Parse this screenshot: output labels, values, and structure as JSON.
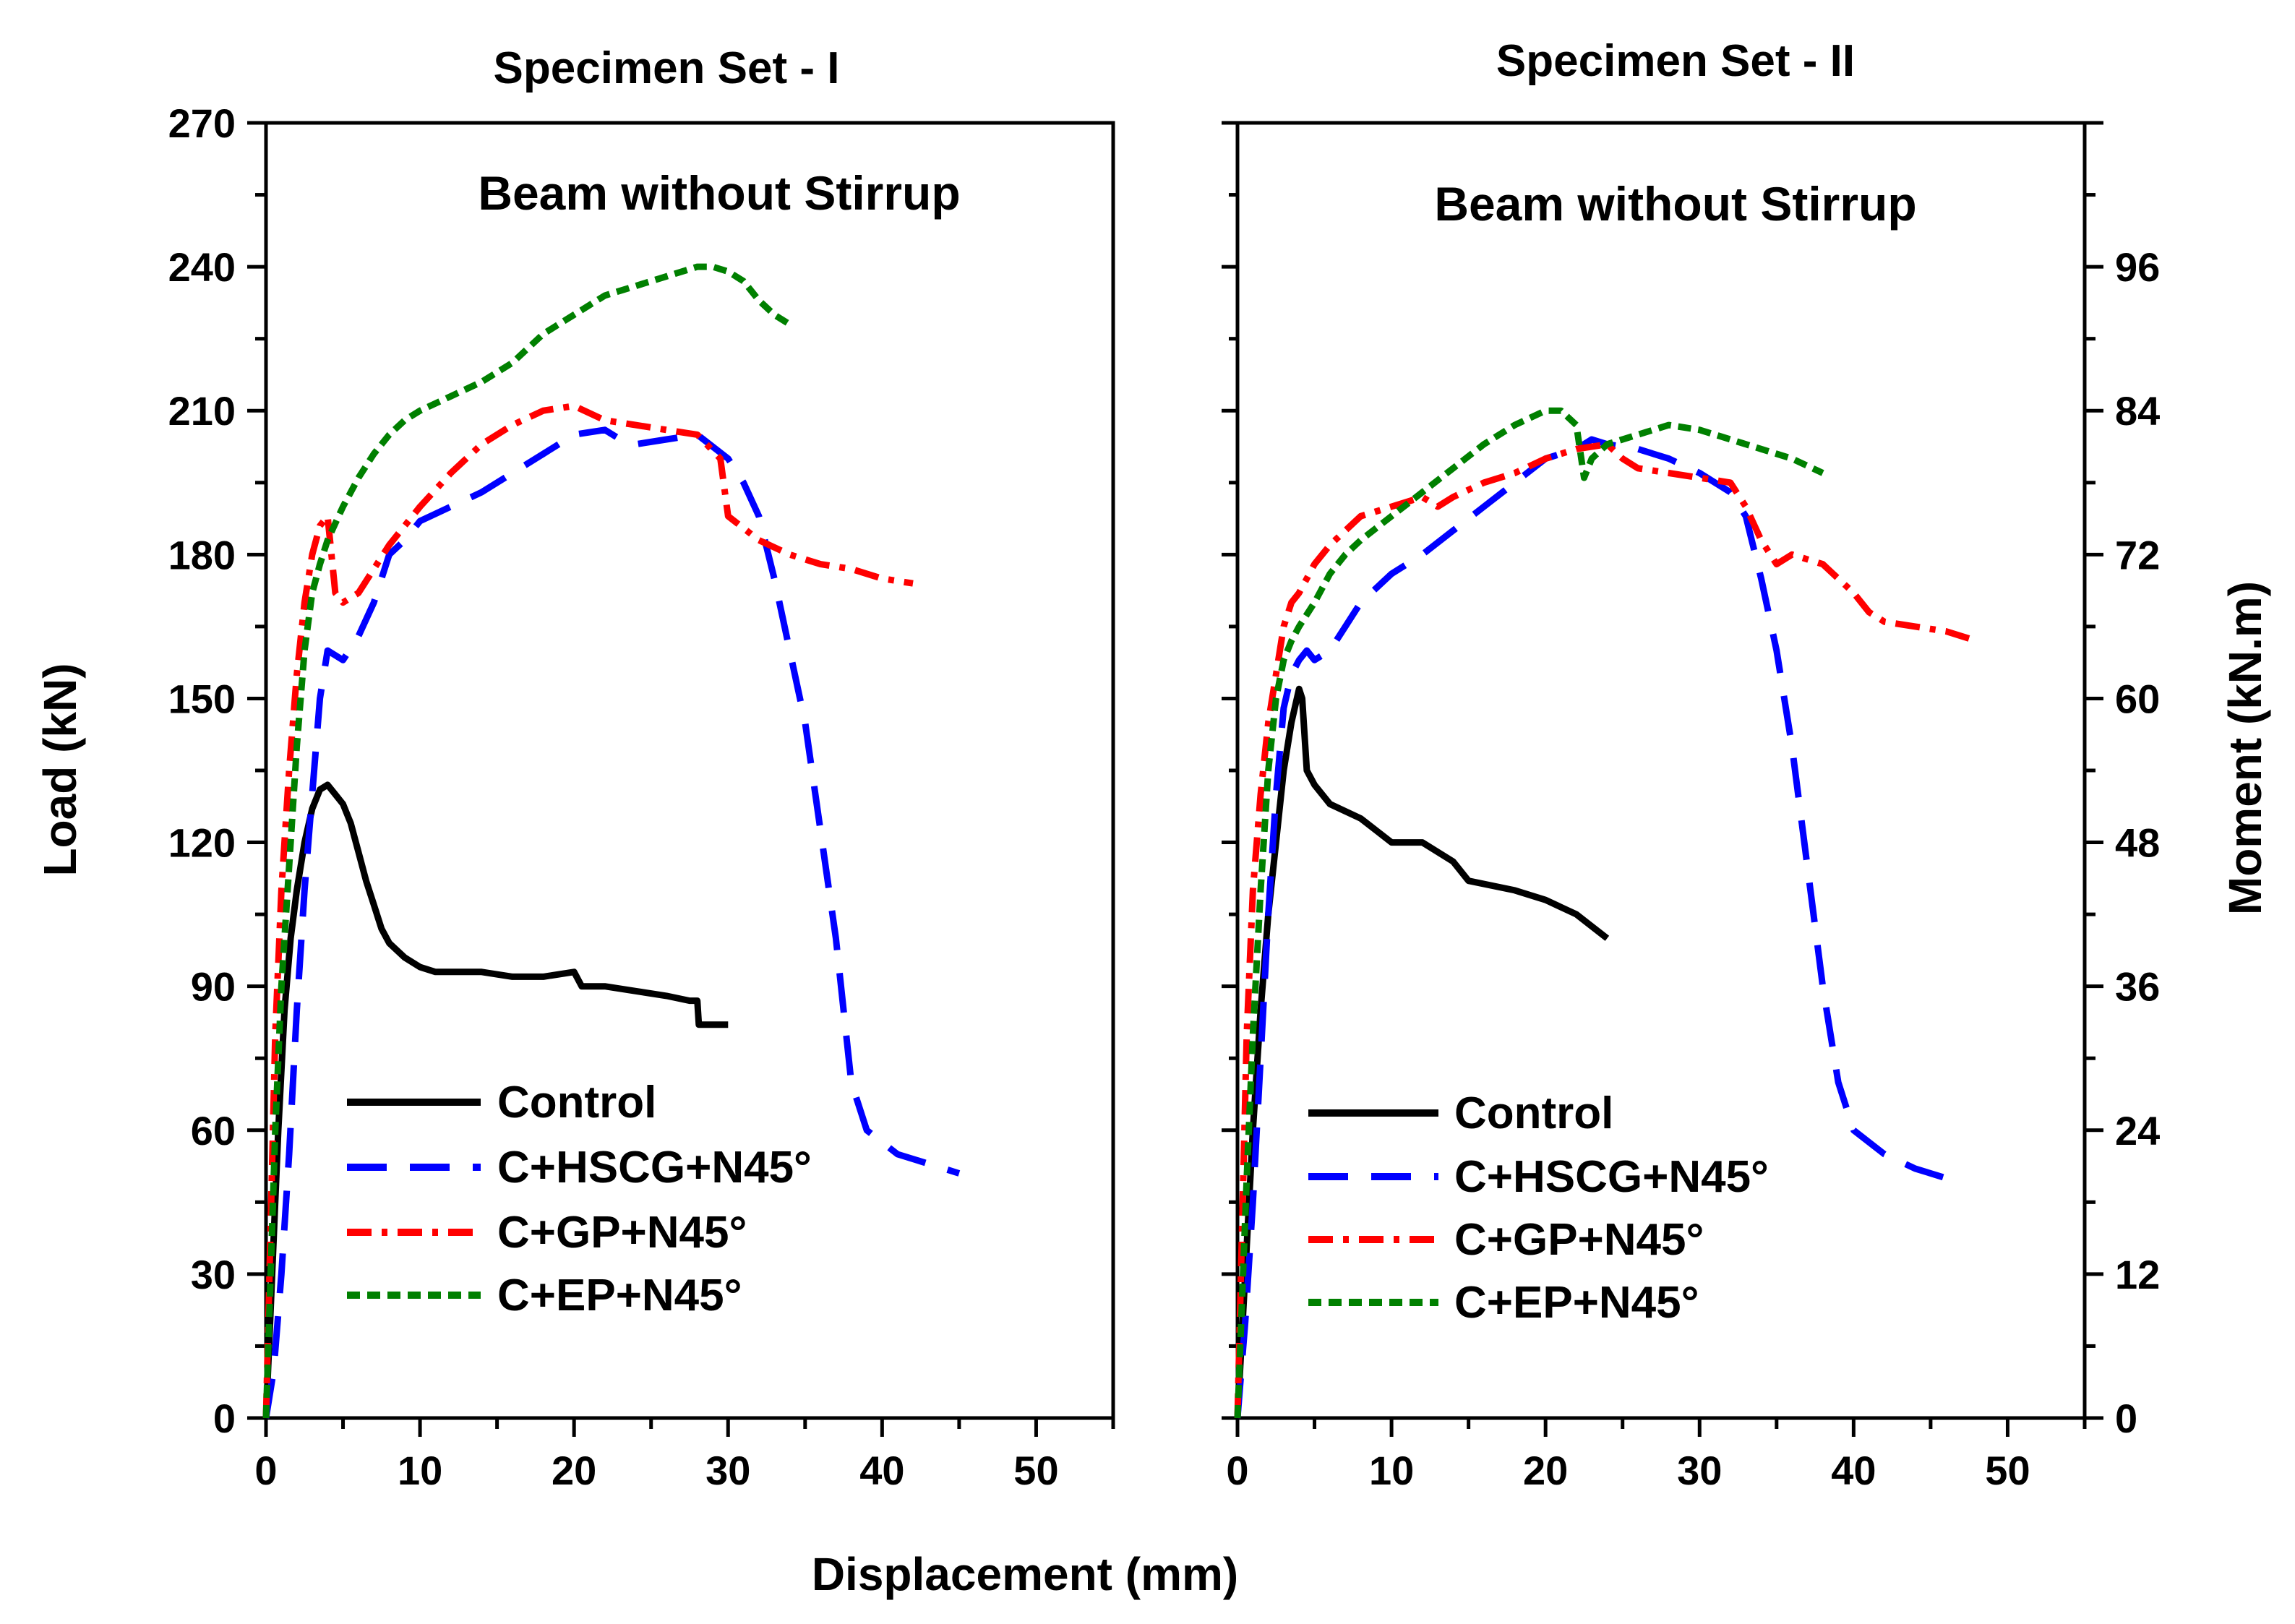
{
  "figure": {
    "shared_xlabel": "Displacement (mm)",
    "left_ylabel": "Load (kN)",
    "right_ylabel": "Moment (kN.m)"
  },
  "chart_data": [
    {
      "type": "line",
      "title": "Specimen Set - I",
      "annotation": "Beam without Stirrup",
      "xlabel": "Displacement (mm)",
      "ylabel": "Load (kN)",
      "xlim": [
        0,
        55
      ],
      "ylim": [
        0,
        270
      ],
      "xticks": [
        0,
        10,
        20,
        30,
        40,
        50
      ],
      "yticks": [
        0,
        30,
        60,
        90,
        120,
        150,
        180,
        210,
        240,
        270
      ],
      "legend_position": "lower-left",
      "series": [
        {
          "name": "Control",
          "color": "#000000",
          "dash": "solid",
          "x": [
            0,
            0.4,
            0.8,
            1.2,
            1.6,
            2.0,
            2.5,
            3.0,
            3.5,
            4.0,
            4.5,
            5.0,
            5.5,
            6.0,
            6.5,
            7.0,
            7.5,
            8.0,
            9.0,
            10.0,
            11.0,
            12.0,
            14.0,
            16.0,
            18.0,
            20.0,
            20.5,
            22.0,
            24.0,
            26.0,
            27.5,
            28.0,
            28.1,
            29.0,
            30.0
          ],
          "y": [
            0,
            30,
            60,
            85,
            100,
            110,
            120,
            127,
            131,
            132,
            130,
            128,
            124,
            118,
            112,
            107,
            102,
            99,
            96,
            94,
            93,
            93,
            93,
            92,
            92,
            93,
            90,
            90,
            89,
            88,
            87,
            87,
            82,
            82,
            82
          ]
        },
        {
          "name": "C+HSCG+N45°",
          "color": "#0000ff",
          "dash": "long-dash",
          "x": [
            0,
            0.5,
            1.0,
            1.5,
            2.0,
            2.5,
            3.0,
            3.5,
            4.0,
            5.0,
            6.0,
            7.0,
            8.0,
            9.0,
            10.0,
            12.0,
            14.0,
            16.0,
            18.0,
            20.0,
            22.0,
            23.0,
            24.0,
            26.0,
            28.0,
            30.0,
            31.0,
            32.0,
            33.0,
            35.0,
            37.0,
            38.0,
            39.0,
            41.0,
            43.0,
            45.0
          ],
          "y": [
            0,
            10,
            30,
            55,
            85,
            110,
            130,
            150,
            160,
            158,
            163,
            170,
            180,
            183,
            187,
            190,
            193,
            197,
            201,
            205,
            206,
            204,
            203,
            204,
            205,
            200,
            195,
            188,
            175,
            145,
            100,
            70,
            60,
            55,
            53,
            51
          ]
        },
        {
          "name": "C+GP+N45°",
          "color": "#ff0000",
          "dash": "dash-dot",
          "x": [
            0,
            0.3,
            0.6,
            1.0,
            1.5,
            2.0,
            2.5,
            3.0,
            3.5,
            4.0,
            4.5,
            5.0,
            6.0,
            7.0,
            8.0,
            10.0,
            12.0,
            14.0,
            16.0,
            18.0,
            20.0,
            22.0,
            24.0,
            26.0,
            28.0,
            29.5,
            30.0,
            32.0,
            34.0,
            36.0,
            38.0,
            40.0,
            42.0
          ],
          "y": [
            0,
            40,
            80,
            110,
            135,
            155,
            170,
            180,
            186,
            188,
            172,
            170,
            172,
            177,
            182,
            190,
            197,
            203,
            207,
            210,
            211,
            208,
            207,
            206,
            205,
            200,
            188,
            183,
            180,
            178,
            177,
            175,
            174
          ]
        },
        {
          "name": "C+EP+N45°",
          "color": "#008000",
          "dash": "short-dash",
          "x": [
            0,
            0.3,
            0.6,
            1.0,
            1.5,
            2.0,
            2.5,
            3.0,
            3.5,
            4.0,
            5.0,
            6.0,
            7.0,
            8.0,
            9.0,
            10.0,
            12.0,
            14.0,
            16.0,
            18.0,
            20.0,
            22.0,
            24.0,
            26.0,
            28.0,
            29.0,
            30.0,
            31.0,
            32.0,
            33.0,
            34.0
          ],
          "y": [
            0,
            30,
            60,
            90,
            115,
            140,
            160,
            172,
            178,
            183,
            190,
            196,
            201,
            205,
            208,
            210,
            213,
            216,
            220,
            226,
            230,
            234,
            236,
            238,
            240,
            240,
            239,
            237,
            233,
            230,
            228
          ]
        }
      ]
    },
    {
      "type": "line",
      "title": "Specimen Set - II",
      "annotation": "Beam without Stirrup",
      "xlabel": "Displacement (mm)",
      "ylabel": "Load (kN)",
      "y2label": "Moment (kN.m)",
      "xlim": [
        0,
        55
      ],
      "ylim": [
        0,
        270
      ],
      "y2lim": [
        0,
        108
      ],
      "xticks": [
        0,
        10,
        20,
        30,
        40,
        50
      ],
      "y2ticks": [
        0,
        12,
        24,
        36,
        48,
        60,
        72,
        84,
        96
      ],
      "legend_position": "lower-left",
      "series": [
        {
          "name": "Control",
          "color": "#000000",
          "dash": "solid",
          "x": [
            0,
            0.5,
            1.0,
            1.5,
            2.0,
            2.5,
            3.0,
            3.5,
            4.0,
            4.2,
            4.5,
            5.0,
            6.0,
            8.0,
            10.0,
            12.0,
            13.0,
            14.0,
            15.0,
            18.0,
            20.0,
            22.0,
            24.0
          ],
          "y": [
            0,
            30,
            60,
            85,
            105,
            120,
            135,
            145,
            152,
            150,
            135,
            132,
            128,
            125,
            120,
            120,
            118,
            116,
            112,
            110,
            108,
            105,
            100
          ]
        },
        {
          "name": "C+HSCG+N45°",
          "color": "#0000ff",
          "dash": "long-dash",
          "x": [
            0,
            0.5,
            1.0,
            1.5,
            2.0,
            2.5,
            3.0,
            3.5,
            4.0,
            4.5,
            5.0,
            6.0,
            7.0,
            8.0,
            10.0,
            12.0,
            14.0,
            16.0,
            18.0,
            20.0,
            22.0,
            23.0,
            24.0,
            26.0,
            28.0,
            30.0,
            32.0,
            33.0,
            34.0,
            35.0,
            36.0,
            37.0,
            38.0,
            39.0,
            40.0,
            42.0,
            44.0,
            46.0
          ],
          "y": [
            0,
            20,
            45,
            75,
            105,
            130,
            148,
            155,
            158,
            160,
            158,
            160,
            165,
            170,
            176,
            180,
            185,
            190,
            195,
            200,
            202,
            204,
            203,
            202,
            200,
            197,
            193,
            188,
            175,
            160,
            140,
            115,
            90,
            70,
            60,
            55,
            52,
            50
          ]
        },
        {
          "name": "C+GP+N45°",
          "color": "#ff0000",
          "dash": "dash-dot",
          "x": [
            0,
            0.3,
            0.6,
            1.0,
            1.5,
            2.0,
            2.5,
            3.0,
            3.5,
            4.0,
            4.5,
            5.0,
            6.0,
            7.0,
            8.0,
            10.0,
            12.0,
            13.0,
            14.0,
            16.0,
            18.0,
            20.0,
            22.0,
            24.0,
            25.0,
            26.0,
            28.0,
            30.0,
            32.0,
            33.0,
            34.0,
            35.0,
            36.0,
            38.0,
            40.0,
            41.0,
            42.0,
            44.0,
            46.0,
            48.0
          ],
          "y": [
            0,
            40,
            80,
            110,
            130,
            145,
            155,
            165,
            170,
            172,
            175,
            178,
            182,
            185,
            188,
            190,
            192,
            190,
            192,
            195,
            197,
            200,
            202,
            203,
            200,
            198,
            197,
            196,
            195,
            190,
            183,
            178,
            180,
            178,
            172,
            168,
            166,
            165,
            164,
            162
          ]
        },
        {
          "name": "C+EP+N45°",
          "color": "#008000",
          "dash": "short-dash",
          "x": [
            0,
            0.3,
            0.6,
            1.0,
            1.5,
            2.0,
            2.5,
            3.0,
            3.5,
            4.0,
            5.0,
            6.0,
            7.0,
            8.0,
            10.0,
            12.0,
            14.0,
            16.0,
            18.0,
            20.0,
            21.0,
            22.0,
            22.5,
            23.0,
            24.0,
            26.0,
            28.0,
            30.0,
            32.0,
            34.0,
            36.0,
            38.0
          ],
          "y": [
            0,
            25,
            50,
            80,
            110,
            135,
            150,
            158,
            162,
            165,
            170,
            176,
            180,
            183,
            188,
            193,
            198,
            203,
            207,
            210,
            210,
            207,
            196,
            200,
            203,
            205,
            207,
            206,
            204,
            202,
            200,
            197
          ]
        }
      ]
    }
  ]
}
